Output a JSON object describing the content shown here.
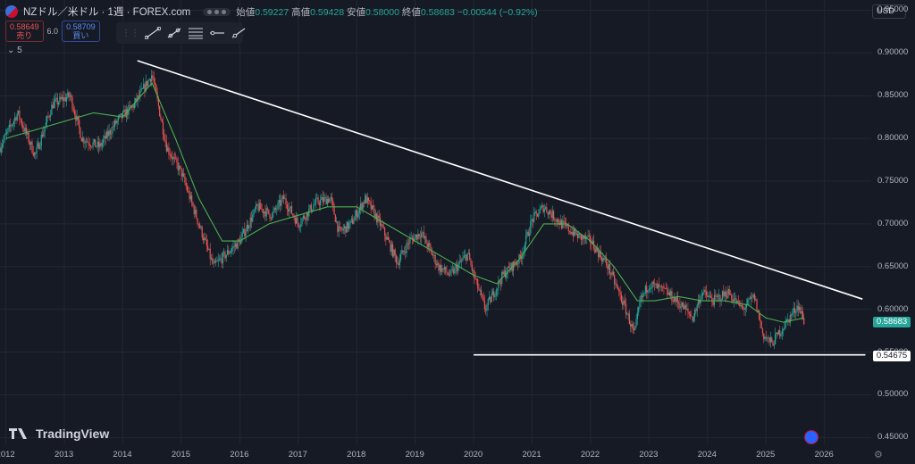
{
  "header": {
    "symbol": "NZドル／米ドル · 1週 · FOREX.com",
    "open_label": "始値",
    "open": "0.59227",
    "high_label": "高値",
    "high": "0.59428",
    "low_label": "安値",
    "low": "0.58000",
    "close_label": "終値",
    "close": "0.58683",
    "change": "−0.00544 (−0.92%)"
  },
  "trade": {
    "sell_price": "0.58649",
    "sell_label": "売り",
    "spread": "6.0",
    "buy_price": "0.58709",
    "buy_label": "買い"
  },
  "collapse_count": "5",
  "currency": "USD",
  "branding": "TradingView",
  "colors": {
    "up": "#26a69a",
    "down": "#ef5350",
    "ma": "#4caf50",
    "trend": "#ffffff",
    "background": "#161a25"
  },
  "icons": [
    "trend-line-icon",
    "channel-icon",
    "fib-icon",
    "horizontal-ray-icon",
    "ray-icon",
    "settings-gear-icon",
    "flag-icon"
  ],
  "chart_data": {
    "type": "line",
    "title": "NZドル／米ドル · 1週 · FOREX.com",
    "xlim": [
      2011.9,
      2026.8
    ],
    "ylim": [
      0.442,
      0.962
    ],
    "y_ticks": [
      0.45,
      0.5,
      0.55,
      0.6,
      0.65,
      0.7,
      0.75,
      0.8,
      0.85,
      0.9,
      0.95
    ],
    "y_tick_labels": [
      "0.45000",
      "0.50000",
      "0.55000",
      "0.60000",
      "0.65000",
      "0.70000",
      "0.75000",
      "0.80000",
      "0.85000",
      "0.90000",
      "0.95000"
    ],
    "x_ticks": [
      2012,
      2013,
      2014,
      2015,
      2016,
      2017,
      2018,
      2019,
      2020,
      2021,
      2022,
      2023,
      2024,
      2025,
      2026
    ],
    "x_tick_labels": [
      "2012",
      "2013",
      "2014",
      "2015",
      "2016",
      "2017",
      "2018",
      "2019",
      "2020",
      "2021",
      "2022",
      "2023",
      "2024",
      "2025",
      "2026"
    ],
    "grid": true,
    "series": [
      {
        "type": "candlestick",
        "color_up": "#26a69a",
        "color_down": "#ef5350",
        "x": [
          2011.9,
          2012.2,
          2012.5,
          2012.8,
          2013.1,
          2013.3,
          2013.6,
          2013.9,
          2014.2,
          2014.5,
          2014.75,
          2015.0,
          2015.3,
          2015.55,
          2015.7,
          2016.0,
          2016.3,
          2016.55,
          2016.75,
          2017.0,
          2017.3,
          2017.55,
          2017.7,
          2017.9,
          2018.15,
          2018.4,
          2018.7,
          2018.9,
          2019.1,
          2019.4,
          2019.6,
          2019.9,
          2020.0,
          2020.2,
          2020.5,
          2020.8,
          2021.0,
          2021.2,
          2021.5,
          2021.8,
          2022.0,
          2022.3,
          2022.6,
          2022.75,
          2022.85,
          2023.0,
          2023.3,
          2023.55,
          2023.75,
          2023.9,
          2024.1,
          2024.35,
          2024.6,
          2024.8,
          2024.95,
          2025.1,
          2025.3,
          2025.55,
          2025.65
        ],
        "y": [
          0.79,
          0.83,
          0.78,
          0.84,
          0.85,
          0.8,
          0.79,
          0.82,
          0.84,
          0.875,
          0.79,
          0.76,
          0.7,
          0.65,
          0.66,
          0.68,
          0.72,
          0.71,
          0.73,
          0.7,
          0.725,
          0.73,
          0.69,
          0.7,
          0.73,
          0.7,
          0.655,
          0.68,
          0.69,
          0.65,
          0.64,
          0.665,
          0.64,
          0.6,
          0.64,
          0.66,
          0.705,
          0.72,
          0.7,
          0.685,
          0.68,
          0.65,
          0.6,
          0.57,
          0.61,
          0.63,
          0.62,
          0.605,
          0.59,
          0.62,
          0.61,
          0.62,
          0.6,
          0.615,
          0.57,
          0.56,
          0.58,
          0.605,
          0.587
        ]
      },
      {
        "type": "moving-average",
        "color": "#4caf50",
        "x": [
          2012.0,
          2012.5,
          2013.0,
          2013.5,
          2014.0,
          2014.5,
          2014.9,
          2015.3,
          2015.7,
          2016.0,
          2016.5,
          2017.0,
          2017.5,
          2018.0,
          2018.5,
          2019.0,
          2019.5,
          2020.0,
          2020.4,
          2020.8,
          2021.2,
          2021.6,
          2022.0,
          2022.4,
          2022.8,
          2023.1,
          2023.5,
          2023.9,
          2024.3,
          2024.7,
          2025.0,
          2025.3,
          2025.65
        ],
        "y": [
          0.8,
          0.81,
          0.82,
          0.83,
          0.825,
          0.865,
          0.8,
          0.73,
          0.68,
          0.68,
          0.7,
          0.71,
          0.72,
          0.72,
          0.7,
          0.68,
          0.66,
          0.64,
          0.63,
          0.66,
          0.7,
          0.7,
          0.68,
          0.65,
          0.61,
          0.61,
          0.615,
          0.61,
          0.61,
          0.605,
          0.59,
          0.585,
          0.59
        ]
      },
      {
        "type": "trend-line",
        "color": "#ffffff",
        "x": [
          2014.25,
          2026.65
        ],
        "y": [
          0.891,
          0.612
        ]
      },
      {
        "type": "horizontal-line",
        "color": "#ffffff",
        "x": [
          2020.0,
          2026.7
        ],
        "y": [
          0.54675,
          0.54675
        ]
      }
    ],
    "price_tags": {
      "current": "0.58683",
      "support": "0.54675"
    }
  }
}
